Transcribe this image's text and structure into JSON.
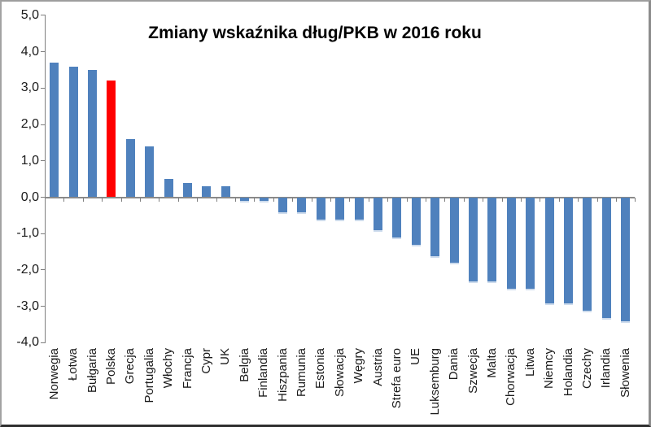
{
  "chart_data": {
    "type": "bar",
    "title": "Zmiany wskaźnika dług/PKB w 2016 roku",
    "categories": [
      "Norwegia",
      "Łotwa",
      "Bułgaria",
      "Polska",
      "Grecja",
      "Portugalia",
      "Włochy",
      "Francja",
      "Cypr",
      "UK",
      "Belgia",
      "Finlandia",
      "Hiszpania",
      "Rumunia",
      "Estonia",
      "Słowacja",
      "Węgry",
      "Austria",
      "Strefa euro",
      "UE",
      "Luksemburg",
      "Dania",
      "Szwecja",
      "Malta",
      "Chorwacja",
      "Litwa",
      "Niemcy",
      "Holandia",
      "Czechy",
      "Irlandia",
      "Słowenia"
    ],
    "values": [
      3.7,
      3.6,
      3.5,
      3.2,
      1.6,
      1.4,
      0.5,
      0.4,
      0.3,
      0.3,
      -0.1,
      -0.1,
      -0.4,
      -0.4,
      -0.6,
      -0.6,
      -0.6,
      -0.9,
      -1.1,
      -1.3,
      -1.6,
      -1.8,
      -2.3,
      -2.3,
      -2.5,
      -2.5,
      -2.9,
      -2.9,
      -3.1,
      -3.3,
      -3.4
    ],
    "xlabel": "",
    "ylabel": "",
    "ylim": [
      -4.0,
      5.0
    ],
    "ytick_values": [
      5,
      4,
      3,
      2,
      1,
      0,
      -1,
      -2,
      -3,
      -4
    ],
    "ytick_labels": [
      "5,0",
      "4,0",
      "3,0",
      "2,0",
      "1,0",
      "0,0",
      "-1,0",
      "-2,0",
      "-3,0",
      "-4,0"
    ],
    "grid": false,
    "legend": "none",
    "bar_color": "#4F81BD",
    "highlight_category": "Polska",
    "highlight_color": "#FF0000",
    "axis_color": "#7f7f7f",
    "decimal_separator": ","
  }
}
